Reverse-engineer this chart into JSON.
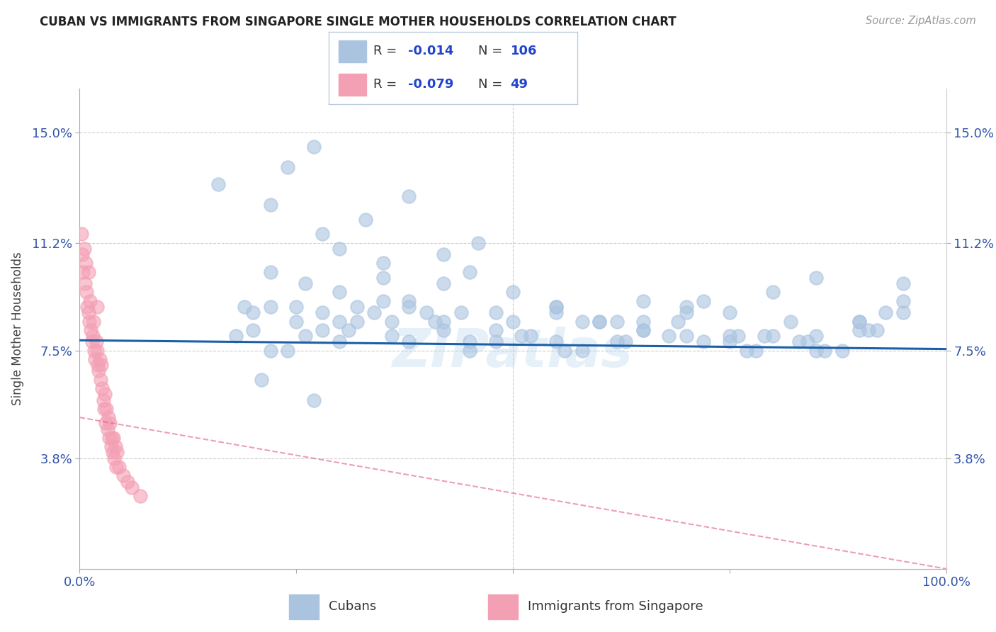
{
  "title": "CUBAN VS IMMIGRANTS FROM SINGAPORE SINGLE MOTHER HOUSEHOLDS CORRELATION CHART",
  "source": "Source: ZipAtlas.com",
  "ylabel": "Single Mother Households",
  "xlim": [
    0,
    100
  ],
  "ylim": [
    0,
    16.5
  ],
  "yticks": [
    3.8,
    7.5,
    11.2,
    15.0
  ],
  "ytick_labels": [
    "3.8%",
    "7.5%",
    "11.2%",
    "15.0%"
  ],
  "blue_line_color": "#1a5fa8",
  "pink_line_color": "#e06080",
  "blue_scatter_color": "#aac4e0",
  "pink_scatter_color": "#f4a0b4",
  "watermark": "ZIPatlas",
  "background_color": "#ffffff",
  "grid_color": "#cccccc",
  "blue_line_intercept": 7.85,
  "blue_line_slope": -0.003,
  "pink_line_intercept": 5.2,
  "pink_line_slope": -0.052,
  "cubans_x": [
    27,
    16,
    22,
    24,
    33,
    28,
    38,
    42,
    46,
    30,
    35,
    22,
    26,
    30,
    35,
    38,
    42,
    45,
    50,
    55,
    60,
    65,
    70,
    75,
    80,
    85,
    90,
    95,
    20,
    25,
    30,
    35,
    40,
    45,
    50,
    55,
    60,
    65,
    70,
    75,
    80,
    85,
    90,
    95,
    18,
    22,
    28,
    32,
    36,
    42,
    48,
    55,
    62,
    68,
    75,
    82,
    88,
    95,
    20,
    26,
    32,
    38,
    45,
    52,
    58,
    65,
    72,
    78,
    85,
    92,
    24,
    30,
    36,
    42,
    48,
    56,
    63,
    70,
    77,
    84,
    91,
    22,
    28,
    34,
    41,
    48,
    55,
    62,
    69,
    76,
    83,
    90,
    19,
    25,
    31,
    38,
    44,
    51,
    58,
    65,
    72,
    79,
    86,
    93,
    21,
    27
  ],
  "cubans_y": [
    14.5,
    13.2,
    12.5,
    13.8,
    12.0,
    11.5,
    12.8,
    10.8,
    11.2,
    11.0,
    10.5,
    10.2,
    9.8,
    9.5,
    10.0,
    9.2,
    9.8,
    10.2,
    9.5,
    9.0,
    8.5,
    9.2,
    8.8,
    8.0,
    9.5,
    10.0,
    8.2,
    9.8,
    8.8,
    9.0,
    8.5,
    9.2,
    8.8,
    7.8,
    8.5,
    9.0,
    8.5,
    8.2,
    9.0,
    8.8,
    8.0,
    7.5,
    8.5,
    9.2,
    8.0,
    7.5,
    8.8,
    9.0,
    8.5,
    8.2,
    8.8,
    7.8,
    8.5,
    8.0,
    7.8,
    8.5,
    7.5,
    8.8,
    8.2,
    8.0,
    8.5,
    7.8,
    7.5,
    8.0,
    8.5,
    8.2,
    7.8,
    7.5,
    8.0,
    8.2,
    7.5,
    7.8,
    8.0,
    8.5,
    7.8,
    7.5,
    7.8,
    8.0,
    7.5,
    7.8,
    8.2,
    9.0,
    8.2,
    8.8,
    8.5,
    8.2,
    8.8,
    7.8,
    8.5,
    8.0,
    7.8,
    8.5,
    9.0,
    8.5,
    8.2,
    9.0,
    8.8,
    8.0,
    7.5,
    8.5,
    9.2,
    8.0,
    7.5,
    8.8,
    6.5,
    5.8
  ],
  "singapore_x": [
    0.2,
    0.3,
    0.4,
    0.5,
    0.6,
    0.7,
    0.8,
    0.9,
    1.0,
    1.0,
    1.1,
    1.2,
    1.3,
    1.4,
    1.5,
    1.6,
    1.7,
    1.8,
    1.9,
    2.0,
    2.0,
    2.1,
    2.2,
    2.3,
    2.4,
    2.5,
    2.6,
    2.7,
    2.8,
    2.9,
    3.0,
    3.1,
    3.2,
    3.3,
    3.4,
    3.5,
    3.6,
    3.7,
    3.8,
    3.9,
    4.0,
    4.1,
    4.2,
    4.3,
    4.5,
    5.0,
    5.5,
    6.0,
    7.0
  ],
  "singapore_y": [
    11.5,
    10.8,
    10.2,
    11.0,
    9.8,
    10.5,
    9.5,
    9.0,
    8.8,
    10.2,
    8.5,
    9.2,
    8.2,
    7.8,
    8.0,
    8.5,
    7.5,
    7.2,
    7.8,
    7.5,
    9.0,
    7.0,
    6.8,
    7.2,
    6.5,
    7.0,
    6.2,
    5.8,
    5.5,
    6.0,
    5.0,
    5.5,
    4.8,
    5.2,
    4.5,
    5.0,
    4.2,
    4.5,
    4.0,
    4.5,
    3.8,
    4.2,
    3.5,
    4.0,
    3.5,
    3.2,
    3.0,
    2.8,
    2.5
  ]
}
